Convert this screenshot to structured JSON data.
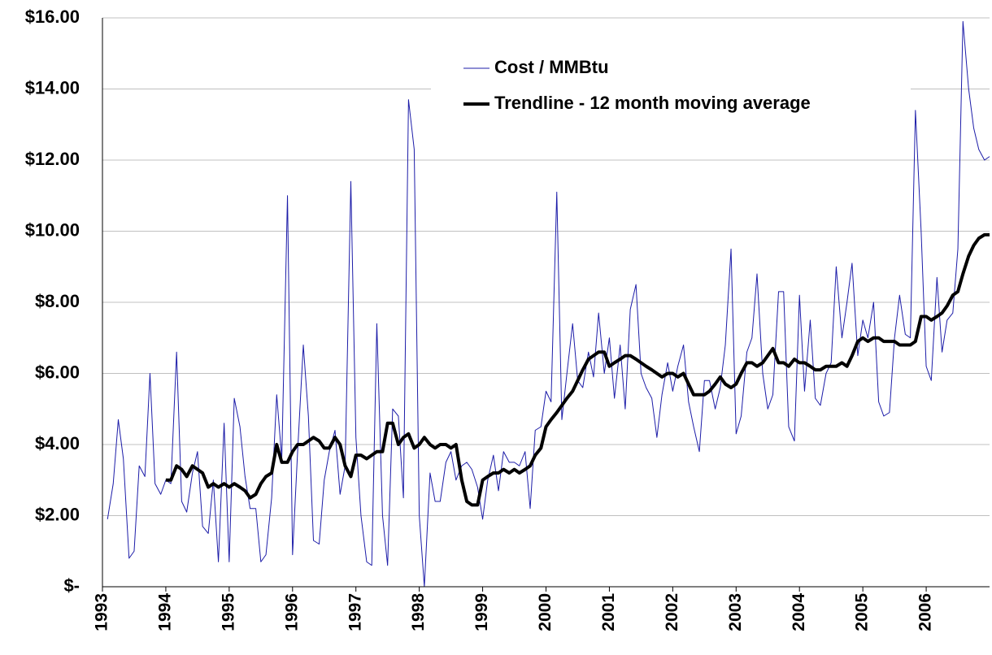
{
  "chart_data": {
    "type": "line",
    "x": [
      1993.08,
      1993.17,
      1993.25,
      1993.33,
      1993.42,
      1993.5,
      1993.58,
      1993.67,
      1993.75,
      1993.83,
      1993.92,
      1994.0,
      1994.08,
      1994.17,
      1994.25,
      1994.33,
      1994.42,
      1994.5,
      1994.58,
      1994.67,
      1994.75,
      1994.83,
      1994.92,
      1995.0,
      1995.08,
      1995.17,
      1995.25,
      1995.33,
      1995.42,
      1995.5,
      1995.58,
      1995.67,
      1995.75,
      1995.83,
      1995.92,
      1996.0,
      1996.08,
      1996.17,
      1996.25,
      1996.33,
      1996.42,
      1996.5,
      1996.58,
      1996.67,
      1996.75,
      1996.83,
      1996.92,
      1997.0,
      1997.08,
      1997.17,
      1997.25,
      1997.33,
      1997.42,
      1997.5,
      1997.58,
      1997.67,
      1997.75,
      1997.83,
      1997.92,
      1998.0,
      1998.08,
      1998.17,
      1998.25,
      1998.33,
      1998.42,
      1998.5,
      1998.58,
      1998.67,
      1998.75,
      1998.83,
      1998.92,
      1999.0,
      1999.08,
      1999.17,
      1999.25,
      1999.33,
      1999.42,
      1999.5,
      1999.58,
      1999.67,
      1999.75,
      1999.83,
      1999.92,
      2000.0,
      2000.08,
      2000.17,
      2000.25,
      2000.33,
      2000.42,
      2000.5,
      2000.58,
      2000.67,
      2000.75,
      2000.83,
      2000.92,
      2001.0,
      2001.08,
      2001.17,
      2001.25,
      2001.33,
      2001.42,
      2001.5,
      2001.58,
      2001.67,
      2001.75,
      2001.83,
      2001.92,
      2002.0,
      2002.08,
      2002.17,
      2002.25,
      2002.33,
      2002.42,
      2002.5,
      2002.58,
      2002.67,
      2002.75,
      2002.83,
      2002.92,
      2003.0,
      2003.08,
      2003.17,
      2003.25,
      2003.33,
      2003.42,
      2003.5,
      2003.58,
      2003.67,
      2003.75,
      2003.83,
      2003.92,
      2004.0,
      2004.08,
      2004.17,
      2004.25,
      2004.33,
      2004.42,
      2004.5,
      2004.58,
      2004.67,
      2004.75,
      2004.83,
      2004.92,
      2005.0,
      2005.08,
      2005.17,
      2005.25,
      2005.33,
      2005.42,
      2005.5,
      2005.58,
      2005.67,
      2005.75,
      2005.83,
      2005.92,
      2006.0,
      2006.08,
      2006.17,
      2006.25,
      2006.33,
      2006.42,
      2006.5,
      2006.58,
      2006.67,
      2006.75,
      2006.83,
      2006.92,
      2007.0
    ],
    "series": [
      {
        "name": "Cost / MMBtu",
        "color": "#1c1ca8",
        "values": [
          1.9,
          2.9,
          4.7,
          3.6,
          0.8,
          1.0,
          3.4,
          3.1,
          6.0,
          2.9,
          2.6,
          3.0,
          2.9,
          6.6,
          2.4,
          2.1,
          3.2,
          3.8,
          1.7,
          1.5,
          3.0,
          0.7,
          4.6,
          0.7,
          5.3,
          4.5,
          3.1,
          2.2,
          2.2,
          0.7,
          0.9,
          2.5,
          5.4,
          3.6,
          11.0,
          0.9,
          3.8,
          6.8,
          4.8,
          1.3,
          1.2,
          3.0,
          3.8,
          4.4,
          2.6,
          3.4,
          11.4,
          4.2,
          2.0,
          0.7,
          0.6,
          7.4,
          2.0,
          0.6,
          5.0,
          4.8,
          2.5,
          13.7,
          12.3,
          2.0,
          0.0,
          3.2,
          2.4,
          2.4,
          3.5,
          3.8,
          3.0,
          3.4,
          3.5,
          3.3,
          2.8,
          1.9,
          3.0,
          3.7,
          2.7,
          3.8,
          3.5,
          3.5,
          3.4,
          3.8,
          2.2,
          4.4,
          4.5,
          5.5,
          5.2,
          11.1,
          4.7,
          6.0,
          7.4,
          5.8,
          5.6,
          6.6,
          5.9,
          7.7,
          6.0,
          7.0,
          5.3,
          6.8,
          5.0,
          7.8,
          8.5,
          6.0,
          5.6,
          5.3,
          4.2,
          5.4,
          6.3,
          5.5,
          6.2,
          6.8,
          5.2,
          4.5,
          3.8,
          5.8,
          5.8,
          5.0,
          5.6,
          6.8,
          9.5,
          4.3,
          4.8,
          6.6,
          7.0,
          8.8,
          6.0,
          5.0,
          5.4,
          8.3,
          8.3,
          4.5,
          4.1,
          8.2,
          5.5,
          7.5,
          5.3,
          5.1,
          6.0,
          6.3,
          9.0,
          7.0,
          8.0,
          9.1,
          6.5,
          7.5,
          7.0,
          8.0,
          5.2,
          4.8,
          4.9,
          7.0,
          8.2,
          7.1,
          7.0,
          13.4,
          10.0,
          6.2,
          5.8,
          8.7,
          6.6,
          7.5,
          7.7,
          9.5,
          15.9,
          14.0,
          12.9,
          12.3,
          12.0,
          12.1
        ]
      },
      {
        "name": "Trendline - 12 month moving average",
        "color": "#000000",
        "values": [
          null,
          null,
          null,
          null,
          null,
          null,
          null,
          null,
          null,
          null,
          null,
          3.0,
          3.0,
          3.4,
          3.3,
          3.1,
          3.4,
          3.3,
          3.2,
          2.8,
          2.9,
          2.8,
          2.9,
          2.8,
          2.9,
          2.8,
          2.7,
          2.5,
          2.6,
          2.9,
          3.1,
          3.2,
          4.0,
          3.5,
          3.5,
          3.8,
          4.0,
          4.0,
          4.1,
          4.2,
          4.1,
          3.9,
          3.9,
          4.2,
          4.0,
          3.4,
          3.1,
          3.7,
          3.7,
          3.6,
          3.7,
          3.8,
          3.8,
          4.6,
          4.6,
          4.0,
          4.2,
          4.3,
          3.9,
          4.0,
          4.2,
          4.0,
          3.9,
          4.0,
          4.0,
          3.9,
          4.0,
          3.0,
          2.4,
          2.3,
          2.3,
          3.0,
          3.1,
          3.2,
          3.2,
          3.3,
          3.2,
          3.3,
          3.2,
          3.3,
          3.4,
          3.7,
          3.9,
          4.5,
          4.7,
          4.9,
          5.1,
          5.3,
          5.5,
          5.8,
          6.1,
          6.4,
          6.5,
          6.6,
          6.6,
          6.2,
          6.3,
          6.4,
          6.5,
          6.5,
          6.4,
          6.3,
          6.2,
          6.1,
          6.0,
          5.9,
          6.0,
          6.0,
          5.9,
          6.0,
          5.7,
          5.4,
          5.4,
          5.4,
          5.5,
          5.7,
          5.9,
          5.7,
          5.6,
          5.7,
          6.0,
          6.3,
          6.3,
          6.2,
          6.3,
          6.5,
          6.7,
          6.3,
          6.3,
          6.2,
          6.4,
          6.3,
          6.3,
          6.2,
          6.1,
          6.1,
          6.2,
          6.2,
          6.2,
          6.3,
          6.2,
          6.5,
          6.9,
          7.0,
          6.9,
          7.0,
          7.0,
          6.9,
          6.9,
          6.9,
          6.8,
          6.8,
          6.8,
          6.9,
          7.6,
          7.6,
          7.5,
          7.6,
          7.7,
          7.9,
          8.2,
          8.3,
          8.8,
          9.3,
          9.6,
          9.8,
          9.9,
          9.9
        ]
      }
    ],
    "xlim": [
      1993,
      2007
    ],
    "xticks": [
      1993,
      1994,
      1995,
      1996,
      1997,
      1998,
      1999,
      2000,
      2001,
      2002,
      2003,
      2004,
      2005,
      2006
    ],
    "ylim": [
      0,
      16
    ],
    "yticks": [
      {
        "value": 0,
        "label": "$-"
      },
      {
        "value": 2,
        "label": "$2.00"
      },
      {
        "value": 4,
        "label": "$4.00"
      },
      {
        "value": 6,
        "label": "$6.00"
      },
      {
        "value": 8,
        "label": "$8.00"
      },
      {
        "value": 10,
        "label": "$10.00"
      },
      {
        "value": 12,
        "label": "$12.00"
      },
      {
        "value": 14,
        "label": "$14.00"
      },
      {
        "value": 16,
        "label": "$16.00"
      }
    ],
    "grid": true,
    "legend": "upper center"
  }
}
